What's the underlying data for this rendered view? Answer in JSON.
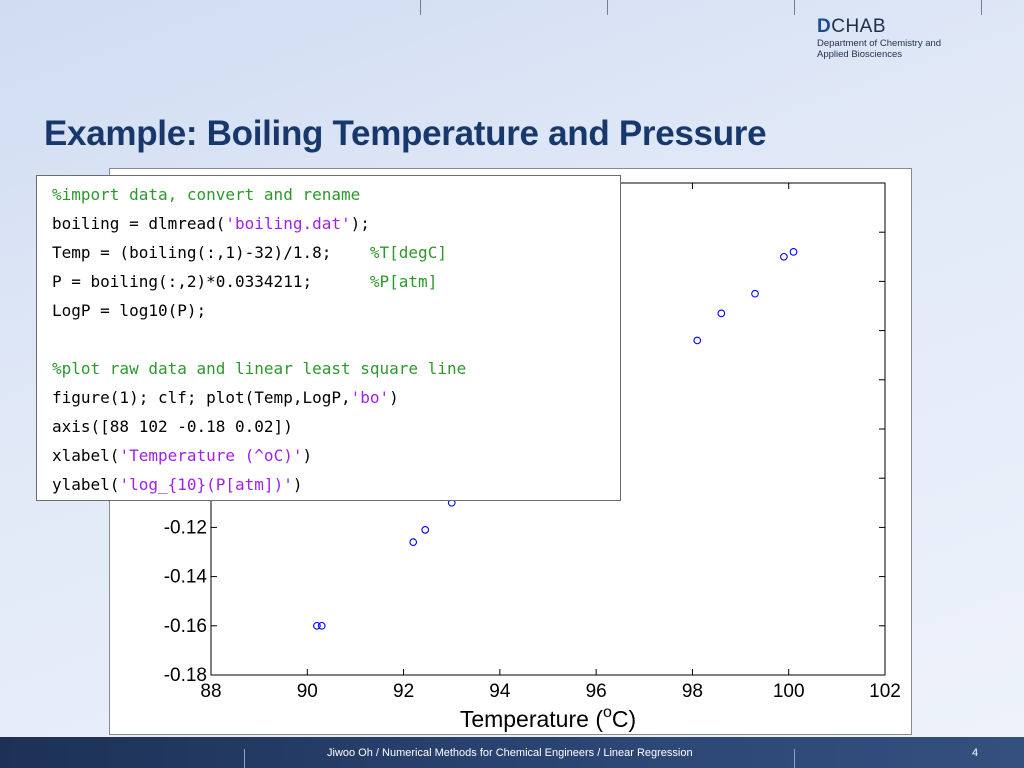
{
  "logo": {
    "letter": "D",
    "rest": "CHAB",
    "line1": "Department of Chemistry and",
    "line2": "Applied Biosciences"
  },
  "slide": {
    "title": "Example: Boiling Temperature and Pressure"
  },
  "code": {
    "lines": [
      [
        {
          "t": "%import data, convert and rename",
          "c": "comment"
        }
      ],
      [
        {
          "t": "boiling = dlmread(",
          "c": "code"
        },
        {
          "t": "'boiling.dat'",
          "c": "str"
        },
        {
          "t": ");",
          "c": "code"
        }
      ],
      [
        {
          "t": "Temp = (boiling(:,1)-32)/1.8;    ",
          "c": "code"
        },
        {
          "t": "%T[degC]",
          "c": "comment"
        }
      ],
      [
        {
          "t": "P = boiling(:,2)*0.0334211;      ",
          "c": "code"
        },
        {
          "t": "%P[atm]",
          "c": "comment"
        }
      ],
      [
        {
          "t": "LogP = log10(P);",
          "c": "code"
        }
      ],
      [],
      [
        {
          "t": "%plot raw data and linear least square line",
          "c": "comment"
        }
      ],
      [
        {
          "t": "figure(1); clf; plot(Temp,LogP,",
          "c": "code"
        },
        {
          "t": "'bo'",
          "c": "str"
        },
        {
          "t": ")",
          "c": "code"
        }
      ],
      [
        {
          "t": "axis([88 102 -0.18 0.02])",
          "c": "code"
        }
      ],
      [
        {
          "t": "xlabel(",
          "c": "code"
        },
        {
          "t": "'Temperature (^oC)'",
          "c": "str"
        },
        {
          "t": ")",
          "c": "code"
        }
      ],
      [
        {
          "t": "ylabel(",
          "c": "code"
        },
        {
          "t": "'log_{10}(P[atm])'",
          "c": "str"
        },
        {
          "t": ")",
          "c": "code"
        }
      ]
    ]
  },
  "chart_data": {
    "type": "scatter",
    "xlabel": "Temperature (",
    "xlabel_sup": "o",
    "xlabel_tail": "C)",
    "xlim": [
      88,
      102
    ],
    "ylim": [
      -0.18,
      0.02
    ],
    "x_ticks": [
      88,
      90,
      92,
      94,
      96,
      98,
      100,
      102
    ],
    "y_ticks_visible": [
      -0.12,
      -0.14,
      -0.16,
      -0.18
    ],
    "marker_color": "#0000ff",
    "points": [
      {
        "x": 90.2,
        "y": -0.16
      },
      {
        "x": 90.3,
        "y": -0.16
      },
      {
        "x": 92.2,
        "y": -0.126
      },
      {
        "x": 92.45,
        "y": -0.121
      },
      {
        "x": 93.0,
        "y": -0.11
      },
      {
        "x": 98.1,
        "y": -0.044
      },
      {
        "x": 98.6,
        "y": -0.033
      },
      {
        "x": 99.3,
        "y": -0.025
      },
      {
        "x": 99.9,
        "y": -0.01
      },
      {
        "x": 100.1,
        "y": -0.008
      }
    ]
  },
  "footer": {
    "text": "Jiwoo Oh / Numerical Methods for Chemical Engineers / Linear Regression",
    "page": "4"
  }
}
